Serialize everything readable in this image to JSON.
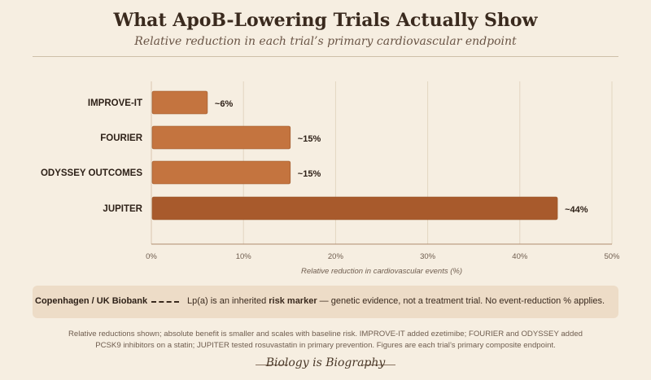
{
  "chart_data": {
    "type": "bar",
    "orientation": "horizontal",
    "title": "What ApoB-Lowering Trials Actually Show",
    "subtitle": "Relative reduction in each trial’s primary cardiovascular endpoint",
    "xlabel": "Relative reduction in cardiovascular events (%)",
    "categories": [
      "IMPROVE-IT",
      "FOURIER",
      "ODYSSEY OUTCOMES",
      "JUPITER"
    ],
    "values": [
      6,
      15,
      15,
      44
    ],
    "value_labels": [
      "~6%",
      "~15%",
      "~15%",
      "~44%"
    ],
    "xlim": [
      0,
      50
    ],
    "xticks": [
      0,
      10,
      20,
      30,
      40,
      50
    ],
    "xtick_labels": [
      "0%",
      "10%",
      "20%",
      "30%",
      "40%",
      "50%"
    ],
    "grid": "vertical",
    "bar_colors": [
      "#c4743f",
      "#c4743f",
      "#c4743f",
      "#a85a2c"
    ]
  },
  "note": {
    "source": "Copenhagen / UK Biobank",
    "text_before": "Lp(a) is an inherited ",
    "text_bold": "risk marker",
    "text_after": " — genetic evidence, not a treatment trial. No event-reduction % applies."
  },
  "footnote": "Relative reductions shown; absolute benefit is smaller and scales with baseline risk. IMPROVE-IT added ezetimibe; FOURIER and ODYSSEY added PCSK9 inhibitors on a statin; JUPITER tested rosuvastatin in primary prevention. Figures are each trial’s primary composite endpoint.",
  "signature": "Biology is Biography"
}
